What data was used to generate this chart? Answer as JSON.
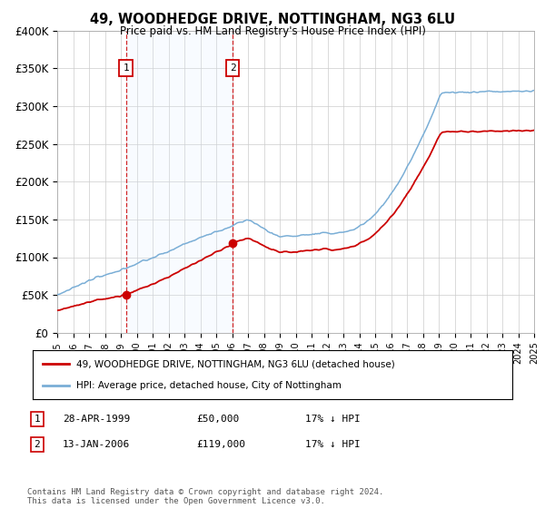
{
  "title": "49, WOODHEDGE DRIVE, NOTTINGHAM, NG3 6LU",
  "subtitle": "Price paid vs. HM Land Registry's House Price Index (HPI)",
  "hpi_color": "#7aaed6",
  "price_color": "#cc0000",
  "shaded_color": "#ddeeff",
  "ylim": [
    0,
    400000
  ],
  "yticks": [
    0,
    50000,
    100000,
    150000,
    200000,
    250000,
    300000,
    350000,
    400000
  ],
  "ytick_labels": [
    "£0",
    "£50K",
    "£100K",
    "£150K",
    "£200K",
    "£250K",
    "£300K",
    "£350K",
    "£400K"
  ],
  "sale1_price": 50000,
  "sale1_year": 1999.32,
  "sale2_price": 119000,
  "sale2_year": 2006.04,
  "legend_label_red": "49, WOODHEDGE DRIVE, NOTTINGHAM, NG3 6LU (detached house)",
  "legend_label_blue": "HPI: Average price, detached house, City of Nottingham",
  "footnote": "Contains HM Land Registry data © Crown copyright and database right 2024.\nThis data is licensed under the Open Government Licence v3.0.",
  "table_row1": [
    "1",
    "28-APR-1999",
    "£50,000",
    "17% ↓ HPI"
  ],
  "table_row2": [
    "2",
    "13-JAN-2006",
    "£119,000",
    "17% ↓ HPI"
  ],
  "bg_color": "#f0f4fa"
}
